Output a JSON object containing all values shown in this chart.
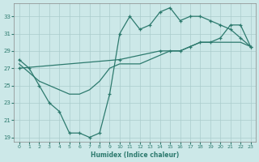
{
  "xlabel": "Humidex (Indice chaleur)",
  "xlim": [
    -0.5,
    23.5
  ],
  "ylim": [
    18.5,
    34.5
  ],
  "yticks": [
    19,
    21,
    23,
    25,
    27,
    29,
    31,
    33
  ],
  "xticks": [
    0,
    1,
    2,
    3,
    4,
    5,
    6,
    7,
    8,
    9,
    10,
    11,
    12,
    13,
    14,
    15,
    16,
    17,
    18,
    19,
    20,
    21,
    22,
    23
  ],
  "background_color": "#cce8e8",
  "grid_color": "#aacccc",
  "line_color": "#2d7a6e",
  "line1_x": [
    0,
    1,
    2,
    3,
    4,
    5,
    6,
    7,
    8,
    9,
    10,
    11,
    12,
    13,
    14,
    15,
    16,
    17,
    18,
    19,
    20,
    21,
    22,
    23
  ],
  "line1_y": [
    28,
    27,
    25,
    23,
    22,
    19.5,
    19.5,
    19,
    19.5,
    24,
    31,
    33,
    31.5,
    32,
    33.5,
    34,
    32.5,
    33,
    33,
    32.5,
    32,
    31.5,
    30.5,
    29.5
  ],
  "line2_x": [
    0,
    1,
    2,
    3,
    4,
    5,
    6,
    7,
    8,
    9,
    10,
    11,
    12,
    13,
    14,
    15,
    16,
    17,
    18,
    19,
    20,
    21,
    22,
    23
  ],
  "line2_y": [
    27.5,
    26.5,
    25.5,
    25,
    24.5,
    24,
    24,
    24.5,
    25.5,
    27,
    27.5,
    27.5,
    27.5,
    28,
    28.5,
    29,
    29,
    29.5,
    30,
    30,
    30,
    30,
    30,
    29.5
  ],
  "line3_x": [
    0,
    10,
    14,
    15,
    16,
    17,
    18,
    19,
    20,
    21,
    22,
    23
  ],
  "line3_y": [
    27,
    28,
    29,
    29,
    29,
    29.5,
    30,
    30,
    30.5,
    32,
    32,
    29.5
  ]
}
